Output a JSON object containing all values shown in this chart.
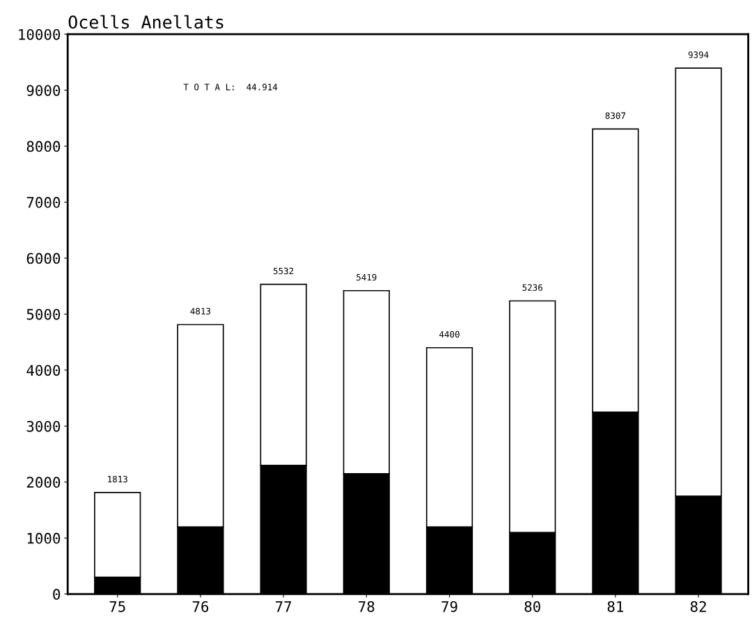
{
  "chart_data": {
    "type": "bar",
    "title": "Ocells Anellats",
    "stacked": true,
    "categories": [
      "75",
      "76",
      "77",
      "78",
      "79",
      "80",
      "81",
      "82"
    ],
    "series": [
      {
        "color": "#000000",
        "values": [
          300,
          1200,
          2300,
          2150,
          1200,
          1100,
          3250,
          1750
        ]
      },
      {
        "color": "#ffffff",
        "values": [
          1513,
          3613,
          3232,
          3269,
          3200,
          4136,
          5057,
          7644
        ]
      }
    ],
    "totals": [
      "1813",
      "4813",
      "5532",
      "5419",
      "4400",
      "5236",
      "8307",
      "9394"
    ],
    "annotations": [
      "T O T A L:  44.914"
    ],
    "ylim": [
      0,
      10000
    ],
    "yticks": [
      0,
      1000,
      2000,
      3000,
      4000,
      5000,
      6000,
      7000,
      8000,
      9000,
      10000
    ],
    "grid": false,
    "legend": false
  }
}
